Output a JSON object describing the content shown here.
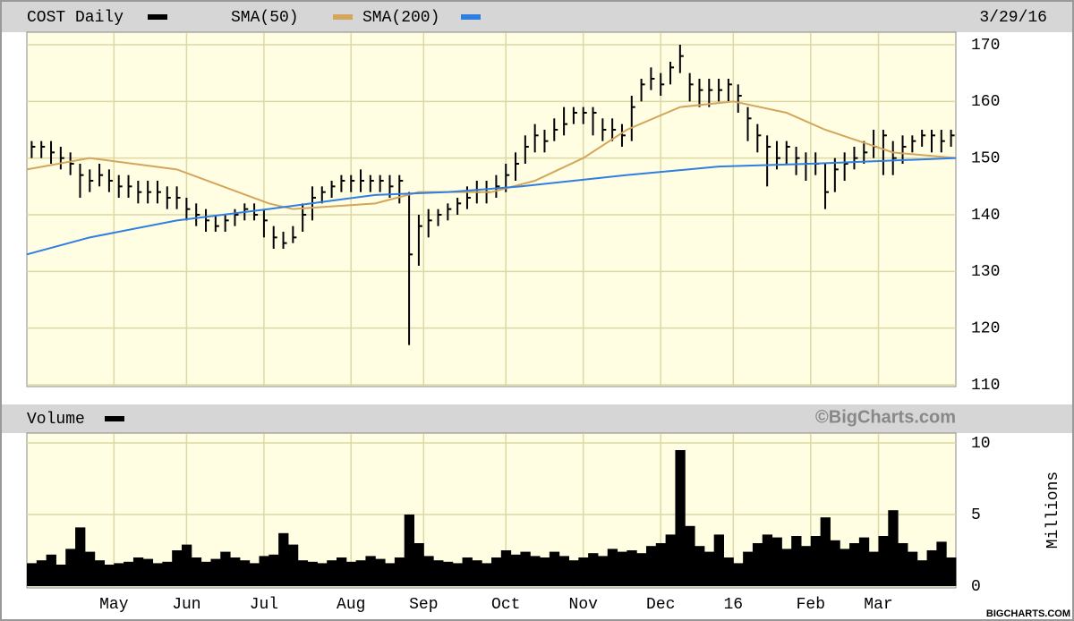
{
  "chart_data": [
    {
      "type": "ohlc",
      "date": "3/29/16",
      "series": [
        {
          "name": "COST Daily",
          "color": "#000000",
          "high": [
            153,
            153,
            153,
            152,
            151,
            149,
            148,
            149,
            148,
            147,
            147,
            146,
            146,
            146,
            145,
            145,
            143,
            142,
            141,
            140,
            140,
            141,
            142,
            142,
            141,
            138,
            137,
            138,
            142,
            145,
            145,
            146,
            147,
            147,
            148,
            147,
            147,
            147,
            147,
            144,
            140,
            141,
            141,
            142,
            143,
            145,
            146,
            146,
            147,
            149,
            151,
            154,
            156,
            155,
            157,
            159,
            159,
            159,
            159,
            157,
            157,
            156,
            161,
            164,
            166,
            165,
            167,
            170,
            165,
            164,
            164,
            164,
            164,
            163,
            159,
            156,
            154,
            153,
            153,
            152,
            151,
            151,
            149,
            150,
            151,
            152,
            153,
            155,
            155,
            153,
            154,
            154,
            155,
            155,
            155,
            155
          ],
          "low": [
            150,
            150,
            149,
            148,
            147,
            143,
            144,
            145,
            144,
            143,
            143,
            142,
            142,
            142,
            141,
            141,
            139,
            138,
            137,
            137,
            137,
            138,
            139,
            139,
            136,
            134,
            134,
            135,
            137,
            139,
            142,
            143,
            144,
            144,
            144,
            144,
            144,
            143,
            142,
            117,
            131,
            136,
            138,
            139,
            140,
            141,
            142,
            142,
            143,
            144,
            146,
            149,
            151,
            151,
            153,
            154,
            156,
            156,
            154,
            153,
            153,
            152,
            153,
            160,
            162,
            161,
            163,
            165,
            160,
            159,
            159,
            160,
            160,
            158,
            153,
            151,
            145,
            148,
            149,
            147,
            146,
            147,
            141,
            144,
            146,
            148,
            149,
            150,
            147,
            147,
            149,
            151,
            152,
            151,
            151,
            152
          ],
          "close": [
            152,
            152,
            151,
            150,
            149,
            147,
            146,
            147,
            146,
            145,
            145,
            144,
            144,
            144,
            143,
            143,
            141,
            140,
            139,
            138,
            139,
            140,
            141,
            140,
            139,
            136,
            135,
            136,
            140,
            143,
            144,
            145,
            146,
            146,
            146,
            146,
            146,
            145,
            146,
            133,
            138,
            139,
            140,
            141,
            142,
            143,
            144,
            144,
            145,
            147,
            149,
            152,
            154,
            153,
            155,
            156,
            158,
            158,
            158,
            155,
            155,
            154,
            159,
            163,
            164,
            163,
            166,
            168,
            163,
            162,
            162,
            162,
            163,
            161,
            157,
            154,
            152,
            150,
            152,
            150,
            149,
            149,
            144,
            148,
            149,
            150,
            151,
            152,
            154,
            150,
            152,
            153,
            154,
            154,
            153,
            154
          ]
        },
        {
          "name": "SMA(50)",
          "color": "#d4a55c",
          "x": [
            -0.5,
            6,
            15,
            24.5,
            27,
            35.5,
            40,
            47.5,
            52,
            57,
            61.5,
            67,
            72.5,
            78,
            82,
            85.5,
            89,
            95.5
          ],
          "values": [
            148,
            150,
            148,
            142,
            141,
            142,
            144,
            144,
            146,
            150,
            155,
            159,
            160,
            158,
            155,
            153,
            151,
            150
          ]
        },
        {
          "name": "SMA(200)",
          "color": "#2f7fe0",
          "x": [
            -0.5,
            6,
            15,
            24.5,
            35.5,
            43,
            50.5,
            61.5,
            71,
            80.5,
            95.5
          ],
          "values": [
            133,
            136,
            139,
            141,
            143.5,
            144,
            145,
            147,
            148.5,
            149,
            150
          ]
        }
      ],
      "xlim": [
        -0.5,
        95.5
      ],
      "xticks": [
        {
          "value": 8.5,
          "label": "May"
        },
        {
          "value": 16,
          "label": "Jun"
        },
        {
          "value": 24,
          "label": "Jul"
        },
        {
          "value": 33,
          "label": "Aug"
        },
        {
          "value": 40.5,
          "label": "Sep"
        },
        {
          "value": 49,
          "label": "Oct"
        },
        {
          "value": 57,
          "label": "Nov"
        },
        {
          "value": 65,
          "label": "Dec"
        },
        {
          "value": 72.5,
          "label": "16"
        },
        {
          "value": 80.5,
          "label": "Feb"
        },
        {
          "value": 87.5,
          "label": "Mar"
        }
      ],
      "ylim": [
        110,
        170
      ],
      "yticks": [
        110,
        120,
        130,
        140,
        150,
        160,
        170
      ],
      "grid": true
    },
    {
      "type": "bar",
      "series": [
        {
          "name": "Volume",
          "color": "#000000",
          "values": [
            1.6,
            1.8,
            2.2,
            1.5,
            2.6,
            4.1,
            2.4,
            1.8,
            1.5,
            1.6,
            1.7,
            2.0,
            1.9,
            1.6,
            1.7,
            2.5,
            2.9,
            2.0,
            1.7,
            1.9,
            2.4,
            2.0,
            1.8,
            1.6,
            2.1,
            2.2,
            3.7,
            2.9,
            1.8,
            1.7,
            1.6,
            1.8,
            2.0,
            1.7,
            1.8,
            2.1,
            1.9,
            1.6,
            2.0,
            5.0,
            3.0,
            2.1,
            1.8,
            1.7,
            1.6,
            2.0,
            1.8,
            1.6,
            2.0,
            2.5,
            2.2,
            2.4,
            2.1,
            2.0,
            2.4,
            2.1,
            1.8,
            2.0,
            2.3,
            2.1,
            2.6,
            2.4,
            2.5,
            2.3,
            2.8,
            3.0,
            3.6,
            9.5,
            4.2,
            2.8,
            2.4,
            3.6,
            2.0,
            1.6,
            2.4,
            3.0,
            3.6,
            3.4,
            2.6,
            3.5,
            2.8,
            3.5,
            4.8,
            3.2,
            2.6,
            3.0,
            3.4,
            2.4,
            3.5,
            5.3,
            3.0,
            2.4,
            1.8,
            2.5,
            3.1,
            2.0
          ]
        }
      ],
      "ylim": [
        0,
        10
      ],
      "yticks": [
        0,
        5,
        10
      ],
      "ylabel": "Millions",
      "watermark": "©BigCharts.com",
      "grid": true
    }
  ],
  "footer": "BIGCHARTS.COM"
}
